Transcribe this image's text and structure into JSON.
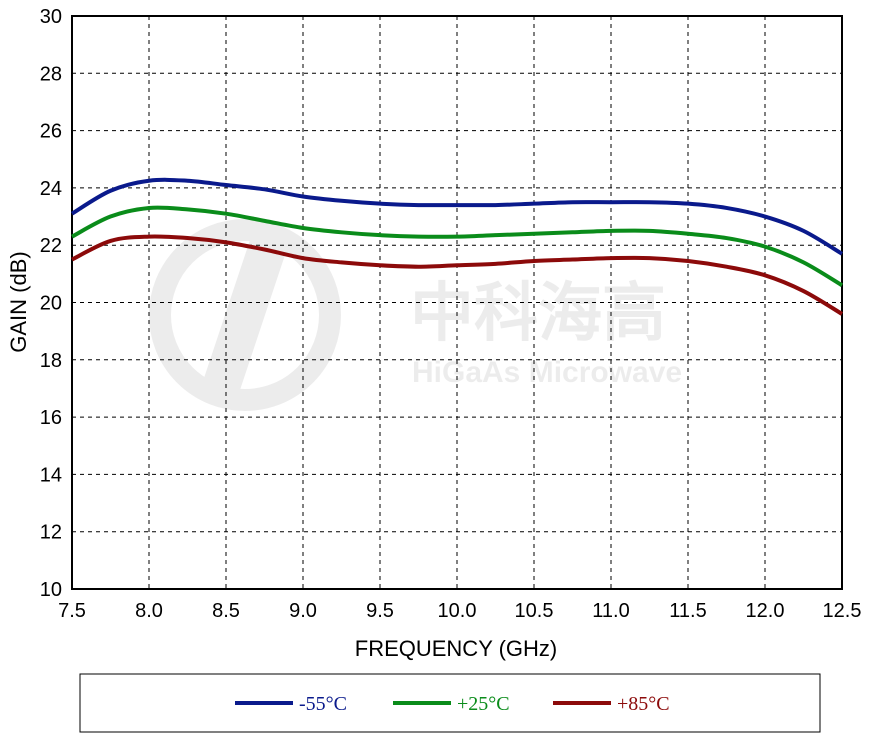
{
  "chart_data": {
    "type": "line",
    "title": "",
    "xlabel": "FREQUENCY (GHz)",
    "ylabel": "GAIN (dB)",
    "xlim": [
      7.5,
      12.5
    ],
    "ylim": [
      10,
      30
    ],
    "xticks": [
      "7.5",
      "8.0",
      "8.5",
      "9.0",
      "9.5",
      "10.0",
      "10.5",
      "11.0",
      "11.5",
      "12.0",
      "12.5"
    ],
    "yticks": [
      "10",
      "12",
      "14",
      "16",
      "18",
      "20",
      "22",
      "24",
      "26",
      "28",
      "30"
    ],
    "grid": true,
    "legend_position": "bottom",
    "x": [
      7.5,
      7.75,
      8.0,
      8.25,
      8.5,
      8.75,
      9.0,
      9.25,
      9.5,
      9.75,
      10.0,
      10.25,
      10.5,
      10.75,
      11.0,
      11.25,
      11.5,
      11.75,
      12.0,
      12.25,
      12.5
    ],
    "series": [
      {
        "name": "-55°C",
        "color": "#0a1a8c",
        "values": [
          23.1,
          23.9,
          24.25,
          24.25,
          24.1,
          23.95,
          23.7,
          23.55,
          23.45,
          23.4,
          23.4,
          23.4,
          23.45,
          23.5,
          23.5,
          23.5,
          23.45,
          23.3,
          23.0,
          22.5,
          21.7
        ]
      },
      {
        "name": "+25°C",
        "color": "#0a8c1a",
        "values": [
          22.3,
          23.0,
          23.3,
          23.25,
          23.1,
          22.85,
          22.6,
          22.45,
          22.35,
          22.3,
          22.3,
          22.35,
          22.4,
          22.45,
          22.5,
          22.5,
          22.4,
          22.25,
          21.95,
          21.4,
          20.6
        ]
      },
      {
        "name": "+85°C",
        "color": "#8c0a0a",
        "values": [
          21.5,
          22.15,
          22.3,
          22.25,
          22.1,
          21.85,
          21.55,
          21.4,
          21.3,
          21.25,
          21.3,
          21.35,
          21.45,
          21.5,
          21.55,
          21.55,
          21.45,
          21.25,
          20.95,
          20.4,
          19.6
        ]
      }
    ]
  },
  "watermark": {
    "brand_cn": "中科海高",
    "brand_en": "HiGaAs Microwave"
  }
}
